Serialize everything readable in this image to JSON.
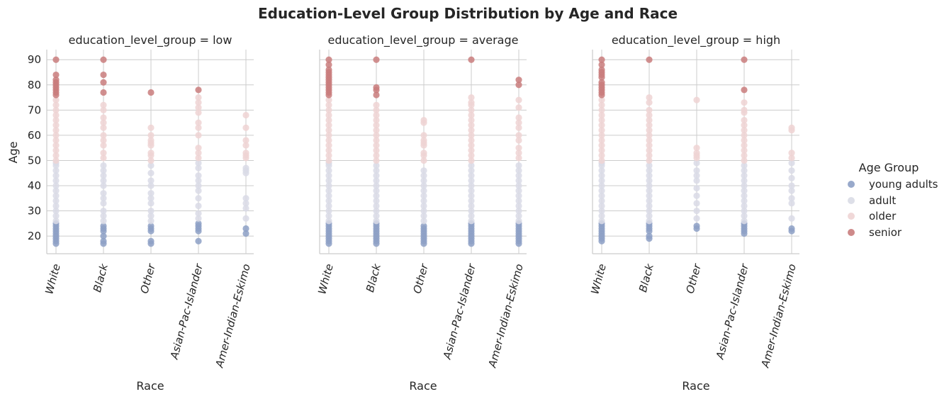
{
  "chart_data": {
    "type": "scatter",
    "title": "Education-Level Group Distribution by Age and Race",
    "xlabel": "Race",
    "ylabel": "Age",
    "categories": [
      "White",
      "Black",
      "Other",
      "Asian-Pac-Islander",
      "Amer-Indian-Eskimo"
    ],
    "yticks": [
      20,
      30,
      40,
      50,
      60,
      70,
      80,
      90
    ],
    "ylim": [
      13,
      94
    ],
    "grid": true,
    "legend": {
      "title": "Age Group",
      "placement": "right",
      "entries": [
        {
          "name": "young adults",
          "color": "#8da0c5"
        },
        {
          "name": "adult",
          "color": "#d9dbe6"
        },
        {
          "name": "older",
          "color": "#eed4d4"
        },
        {
          "name": "senior",
          "color": "#c97d7d"
        }
      ]
    },
    "panels": [
      {
        "title": "education_level_group = low",
        "points": {
          "White": {
            "young adults": [
              17,
              18,
              19,
              20,
              21,
              22,
              23,
              24,
              25
            ],
            "adult": [
              26,
              28,
              30,
              32,
              34,
              36,
              38,
              40,
              42,
              44,
              46,
              48,
              49
            ],
            "older": [
              50,
              52,
              54,
              56,
              58,
              60,
              62,
              64,
              66,
              68,
              70,
              72,
              74
            ],
            "senior": [
              76,
              77,
              78,
              79,
              80,
              81,
              82,
              84,
              90
            ]
          },
          "Black": {
            "young adults": [
              17,
              18,
              20,
              22,
              23,
              24
            ],
            "adult": [
              26,
              28,
              30,
              33,
              35,
              37,
              40,
              42,
              44,
              46,
              48
            ],
            "older": [
              51,
              53,
              56,
              58,
              60,
              63,
              65,
              67,
              70,
              72
            ],
            "senior": [
              77,
              81,
              84,
              90
            ]
          },
          "Other": {
            "young adults": [
              17,
              18,
              22,
              23,
              24
            ],
            "adult": [
              26,
              28,
              30,
              33,
              35,
              37,
              40,
              42,
              45,
              48
            ],
            "older": [
              50,
              52,
              53,
              56,
              57,
              58,
              60,
              63
            ],
            "senior": [
              77
            ]
          },
          "Asian-Pac-Islander": {
            "young adults": [
              18,
              22,
              23,
              24,
              25
            ],
            "adult": [
              27,
              29,
              32,
              35,
              38,
              40,
              42,
              44,
              47,
              49
            ],
            "older": [
              51,
              53,
              55,
              60,
              63,
              65,
              69,
              71,
              73,
              75
            ],
            "senior": [
              78
            ]
          },
          "Amer-Indian-Eskimo": {
            "young adults": [
              21,
              23
            ],
            "adult": [
              27,
              31,
              33,
              35,
              45,
              46,
              47
            ],
            "older": [
              51,
              52,
              53,
              56,
              58,
              63,
              68
            ],
            "senior": []
          }
        }
      },
      {
        "title": "education_level_group = average",
        "points": {
          "White": {
            "young adults": [
              17,
              18,
              19,
              20,
              21,
              22,
              23,
              24,
              25
            ],
            "adult": [
              26,
              28,
              30,
              32,
              34,
              36,
              38,
              40,
              42,
              44,
              46,
              48,
              49
            ],
            "older": [
              50,
              52,
              54,
              56,
              58,
              60,
              62,
              64,
              66,
              68,
              70,
              72,
              74
            ],
            "senior": [
              76,
              77,
              78,
              79,
              80,
              81,
              82,
              83,
              84,
              85,
              86,
              88,
              90
            ]
          },
          "Black": {
            "young adults": [
              17,
              18,
              19,
              20,
              21,
              22,
              23,
              24,
              25
            ],
            "adult": [
              26,
              28,
              30,
              32,
              34,
              36,
              38,
              40,
              42,
              44,
              46,
              48
            ],
            "older": [
              50,
              52,
              54,
              56,
              58,
              60,
              62,
              64,
              66,
              68,
              70,
              72
            ],
            "senior": [
              76,
              78,
              79,
              90
            ]
          },
          "Other": {
            "young adults": [
              17,
              18,
              19,
              20,
              21,
              22,
              23,
              24
            ],
            "adult": [
              26,
              28,
              30,
              32,
              34,
              36,
              38,
              40,
              42,
              44,
              46
            ],
            "older": [
              50,
              52,
              53,
              56,
              57,
              58,
              60,
              65,
              66
            ],
            "senior": []
          },
          "Asian-Pac-Islander": {
            "young adults": [
              17,
              18,
              19,
              20,
              21,
              22,
              23,
              24,
              25
            ],
            "adult": [
              26,
              28,
              30,
              32,
              34,
              36,
              38,
              40,
              42,
              44,
              46,
              48
            ],
            "older": [
              50,
              52,
              54,
              56,
              58,
              60,
              62,
              64,
              66,
              68,
              70,
              72,
              73,
              75
            ],
            "senior": [
              90
            ]
          },
          "Amer-Indian-Eskimo": {
            "young adults": [
              17,
              18,
              19,
              20,
              21,
              22,
              23,
              24,
              25
            ],
            "adult": [
              26,
              28,
              30,
              32,
              34,
              36,
              38,
              40,
              42,
              44,
              46,
              48
            ],
            "older": [
              51,
              53,
              55,
              58,
              60,
              63,
              65,
              67,
              71,
              74
            ],
            "senior": [
              80,
              82
            ]
          }
        }
      },
      {
        "title": "education_level_group = high",
        "points": {
          "White": {
            "young adults": [
              18,
              19,
              20,
              21,
              22,
              23,
              24,
              25
            ],
            "adult": [
              26,
              28,
              30,
              32,
              34,
              36,
              38,
              40,
              42,
              44,
              46,
              48,
              49
            ],
            "older": [
              50,
              52,
              54,
              56,
              58,
              60,
              62,
              64,
              66,
              68,
              70,
              72,
              74
            ],
            "senior": [
              76,
              77,
              78,
              79,
              80,
              81,
              83,
              84,
              85,
              86,
              88,
              90
            ]
          },
          "Black": {
            "young adults": [
              19,
              20,
              22,
              23,
              24,
              25
            ],
            "adult": [
              26,
              28,
              30,
              32,
              34,
              36,
              38,
              40,
              42,
              44,
              46,
              48
            ],
            "older": [
              50,
              52,
              54,
              56,
              58,
              60,
              62,
              64,
              66,
              68,
              70,
              73,
              75
            ],
            "senior": [
              90
            ]
          },
          "Other": {
            "young adults": [
              23,
              24
            ],
            "adult": [
              27,
              30,
              33,
              36,
              39,
              42,
              44,
              46,
              49
            ],
            "older": [
              51,
              52,
              53,
              55,
              74
            ],
            "senior": []
          },
          "Asian-Pac-Islander": {
            "young adults": [
              21,
              22,
              23,
              24,
              25
            ],
            "adult": [
              26,
              28,
              30,
              32,
              34,
              36,
              38,
              40,
              42,
              44,
              46,
              48
            ],
            "older": [
              50,
              52,
              54,
              56,
              58,
              60,
              62,
              64,
              66,
              69,
              70,
              73
            ],
            "senior": [
              78,
              90
            ]
          },
          "Amer-Indian-Eskimo": {
            "young adults": [
              22,
              23
            ],
            "adult": [
              27,
              33,
              35,
              38,
              40,
              43,
              46,
              49
            ],
            "older": [
              51,
              53,
              62,
              63
            ],
            "senior": []
          }
        }
      }
    ]
  }
}
